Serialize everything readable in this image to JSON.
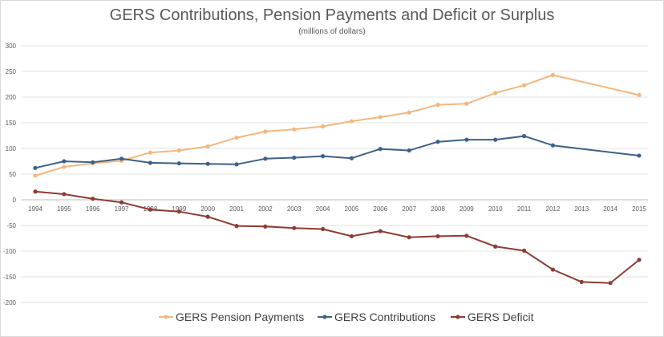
{
  "chart_data": {
    "type": "line",
    "title": "GERS Contributions, Pension Payments and Deficit or Surplus",
    "subtitle": "(millions  of dollars)",
    "x": [
      "1994",
      "1995",
      "1996",
      "1997",
      "1998",
      "1999",
      "2000",
      "2001",
      "2002",
      "2003",
      "2004",
      "2005",
      "2006",
      "2007",
      "2008",
      "2009",
      "2010",
      "2011",
      "2012",
      "2013",
      "2014",
      "2015"
    ],
    "ylim": [
      -200,
      300
    ],
    "yticks": [
      "300",
      "250",
      "200",
      "150",
      "100",
      "50",
      "0",
      "-50",
      "-100",
      "-150",
      "-200"
    ],
    "grid": "horizontal",
    "legend_position": "bottom",
    "series": [
      {
        "name": "GERS Pension Payments",
        "color": "#F4B67F",
        "values": [
          47,
          64,
          71,
          76,
          92,
          96,
          104,
          121,
          133,
          137,
          143,
          153,
          161,
          170,
          185,
          187,
          208,
          223,
          243,
          null,
          null,
          204
        ]
      },
      {
        "name": "GERS Contributions",
        "color": "#3D6189",
        "values": [
          62,
          75,
          73,
          80,
          72,
          71,
          70,
          69,
          80,
          82,
          85,
          81,
          99,
          96,
          113,
          117,
          117,
          124,
          106,
          null,
          null,
          86
        ]
      },
      {
        "name": "GERS Deficit",
        "color": "#8E3C31",
        "values": [
          16,
          11,
          2,
          -5,
          -19,
          -23,
          -33,
          -51,
          -52,
          -55,
          -57,
          -71,
          -61,
          -73,
          -71,
          -70,
          -91,
          -99,
          -136,
          -160,
          -162,
          -117
        ]
      }
    ]
  }
}
